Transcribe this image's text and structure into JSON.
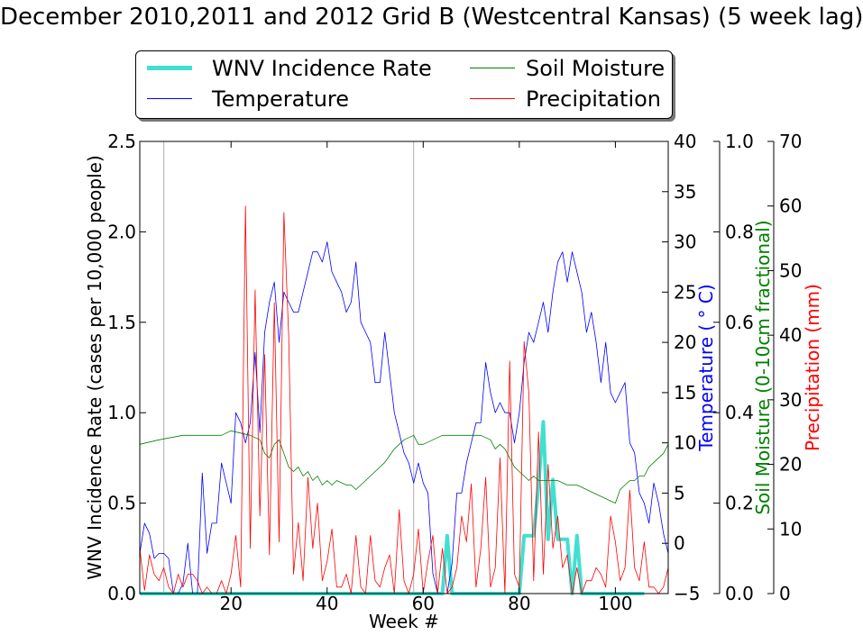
{
  "title": "December 2010,2011 and 2012 Grid B (Westcentral Kansas) (5 week lag)",
  "legend": [
    {
      "label": "WNV Incidence Rate",
      "color": "#40E0D0"
    },
    {
      "label": "Soil Moisture",
      "color": "#008000"
    },
    {
      "label": "Temperature",
      "color": "#0000FF"
    },
    {
      "label": "Precipitation",
      "color": "#FF0000"
    }
  ],
  "chart_data": {
    "type": "line",
    "xlabel": "Week #",
    "xlim": [
      1,
      111
    ],
    "xticks": [
      20,
      40,
      60,
      80,
      100
    ],
    "vlines": [
      6,
      58
    ],
    "axes": {
      "wnv": {
        "label": "WNV Incidence Rate (cases per 10,000 people)",
        "lim": [
          0,
          2.5
        ],
        "ticks": [
          "0.0",
          "0.5",
          "1.0",
          "1.5",
          "2.0",
          "2.5"
        ],
        "color": "#000000"
      },
      "temperature": {
        "label": "Temperature ( ° C)",
        "lim": [
          -5,
          40
        ],
        "ticks": [
          "−5",
          "0",
          "5",
          "10",
          "15",
          "20",
          "25",
          "30",
          "35",
          "40"
        ],
        "color": "#0000FF"
      },
      "soil": {
        "label": "Soil Moisture (0-10cm fractional)",
        "lim": [
          0,
          1.0
        ],
        "ticks": [
          "0.0",
          "0.2",
          "0.4",
          "0.6",
          "0.8",
          "1.0"
        ],
        "color": "#008000"
      },
      "precip": {
        "label": "Precipitation (mm)",
        "lim": [
          0,
          70
        ],
        "ticks": [
          "0",
          "10",
          "20",
          "30",
          "40",
          "50",
          "60",
          "70"
        ],
        "color": "#FF0000"
      }
    },
    "series": [
      {
        "name": "WNV Incidence Rate",
        "axis": "wnv",
        "color": "#40E0D0",
        "width": 4,
        "points": [
          [
            1,
            0
          ],
          [
            64,
            0
          ],
          [
            65,
            0.32
          ],
          [
            66,
            0
          ],
          [
            80,
            0
          ],
          [
            81,
            0.32
          ],
          [
            83,
            0.32
          ],
          [
            84,
            0.6
          ],
          [
            85,
            0.95
          ],
          [
            86,
            0.3
          ],
          [
            87,
            0.63
          ],
          [
            88,
            0.3
          ],
          [
            90,
            0.3
          ],
          [
            91,
            0
          ],
          [
            92,
            0.32
          ],
          [
            93,
            0
          ],
          [
            106,
            0
          ]
        ]
      },
      {
        "name": "Temperature",
        "axis": "temperature",
        "color": "#0000FF",
        "width": 0.8,
        "points": [
          [
            1,
            -1
          ],
          [
            2,
            2
          ],
          [
            3,
            1
          ],
          [
            4,
            -1.5
          ],
          [
            5,
            -1
          ],
          [
            6,
            -1
          ],
          [
            7,
            -1.5
          ],
          [
            8,
            -5
          ],
          [
            9,
            -5
          ],
          [
            10,
            -4
          ],
          [
            11,
            0
          ],
          [
            12,
            -5
          ],
          [
            13,
            -5
          ],
          [
            14,
            7
          ],
          [
            15,
            -1
          ],
          [
            16,
            2
          ],
          [
            17,
            2
          ],
          [
            18,
            8
          ],
          [
            19,
            6
          ],
          [
            20,
            4
          ],
          [
            21,
            13
          ],
          [
            22,
            12
          ],
          [
            23,
            10
          ],
          [
            24,
            12
          ],
          [
            25,
            19
          ],
          [
            26,
            11
          ],
          [
            27,
            21
          ],
          [
            28,
            24
          ],
          [
            29,
            26
          ],
          [
            30,
            20
          ],
          [
            31,
            25
          ],
          [
            32,
            24
          ],
          [
            33,
            23
          ],
          [
            34,
            23
          ],
          [
            35,
            25
          ],
          [
            36,
            27
          ],
          [
            37,
            29
          ],
          [
            38,
            29
          ],
          [
            39,
            28
          ],
          [
            40,
            30
          ],
          [
            41,
            27
          ],
          [
            42,
            26
          ],
          [
            43,
            25
          ],
          [
            44,
            23
          ],
          [
            45,
            24
          ],
          [
            46,
            28
          ],
          [
            47,
            22
          ],
          [
            48,
            21
          ],
          [
            49,
            20
          ],
          [
            50,
            16
          ],
          [
            51,
            16
          ],
          [
            52,
            21
          ],
          [
            53,
            17
          ],
          [
            54,
            13
          ],
          [
            55,
            11
          ],
          [
            56,
            9
          ],
          [
            57,
            8
          ],
          [
            58,
            6
          ],
          [
            59,
            8
          ],
          [
            60,
            6
          ],
          [
            61,
            5
          ],
          [
            62,
            -3
          ],
          [
            63,
            -5
          ],
          [
            64,
            -5
          ],
          [
            65,
            -5
          ],
          [
            66,
            -2
          ],
          [
            67,
            5
          ],
          [
            68,
            5
          ],
          [
            69,
            8
          ],
          [
            70,
            10
          ],
          [
            71,
            12
          ],
          [
            72,
            12
          ],
          [
            73,
            18
          ],
          [
            74,
            15
          ],
          [
            75,
            13
          ],
          [
            76,
            14
          ],
          [
            77,
            13
          ],
          [
            78,
            13
          ],
          [
            79,
            10
          ],
          [
            80,
            13
          ],
          [
            81,
            18
          ],
          [
            82,
            21
          ],
          [
            83,
            20
          ],
          [
            84,
            22
          ],
          [
            85,
            24
          ],
          [
            86,
            21
          ],
          [
            87,
            25
          ],
          [
            88,
            28
          ],
          [
            89,
            29
          ],
          [
            90,
            26
          ],
          [
            91,
            29
          ],
          [
            92,
            27
          ],
          [
            93,
            25
          ],
          [
            94,
            21
          ],
          [
            95,
            23
          ],
          [
            96,
            20
          ],
          [
            97,
            16
          ],
          [
            98,
            20
          ],
          [
            99,
            15
          ],
          [
            100,
            14
          ],
          [
            101,
            15
          ],
          [
            102,
            16
          ],
          [
            103,
            10
          ],
          [
            104,
            9
          ],
          [
            105,
            5
          ],
          [
            106,
            4
          ],
          [
            107,
            2
          ],
          [
            108,
            6
          ],
          [
            109,
            4
          ],
          [
            110,
            1
          ],
          [
            111,
            -1
          ]
        ]
      },
      {
        "name": "Soil Moisture",
        "axis": "soil",
        "color": "#008000",
        "width": 0.8,
        "points": [
          [
            1,
            0.33
          ],
          [
            5,
            0.34
          ],
          [
            10,
            0.35
          ],
          [
            14,
            0.35
          ],
          [
            18,
            0.35
          ],
          [
            20,
            0.36
          ],
          [
            24,
            0.35
          ],
          [
            26,
            0.34
          ],
          [
            27,
            0.31
          ],
          [
            28,
            0.3
          ],
          [
            29,
            0.33
          ],
          [
            30,
            0.34
          ],
          [
            31,
            0.31
          ],
          [
            32,
            0.28
          ],
          [
            33,
            0.27
          ],
          [
            34,
            0.28
          ],
          [
            35,
            0.26
          ],
          [
            36,
            0.27
          ],
          [
            37,
            0.25
          ],
          [
            38,
            0.26
          ],
          [
            39,
            0.24
          ],
          [
            40,
            0.25
          ],
          [
            41,
            0.24
          ],
          [
            42,
            0.25
          ],
          [
            44,
            0.24
          ],
          [
            45,
            0.24
          ],
          [
            46,
            0.23
          ],
          [
            48,
            0.25
          ],
          [
            50,
            0.27
          ],
          [
            52,
            0.29
          ],
          [
            54,
            0.32
          ],
          [
            56,
            0.34
          ],
          [
            58,
            0.35
          ],
          [
            59,
            0.33
          ],
          [
            60,
            0.33
          ],
          [
            62,
            0.34
          ],
          [
            64,
            0.35
          ],
          [
            66,
            0.35
          ],
          [
            68,
            0.35
          ],
          [
            70,
            0.35
          ],
          [
            72,
            0.35
          ],
          [
            74,
            0.34
          ],
          [
            75,
            0.32
          ],
          [
            76,
            0.33
          ],
          [
            77,
            0.32
          ],
          [
            78,
            0.3
          ],
          [
            79,
            0.28
          ],
          [
            80,
            0.27
          ],
          [
            81,
            0.26
          ],
          [
            82,
            0.25
          ],
          [
            83,
            0.26
          ],
          [
            84,
            0.25
          ],
          [
            86,
            0.25
          ],
          [
            88,
            0.25
          ],
          [
            90,
            0.24
          ],
          [
            92,
            0.24
          ],
          [
            94,
            0.23
          ],
          [
            96,
            0.22
          ],
          [
            98,
            0.21
          ],
          [
            100,
            0.2
          ],
          [
            101,
            0.23
          ],
          [
            102,
            0.24
          ],
          [
            103,
            0.25
          ],
          [
            104,
            0.25
          ],
          [
            105,
            0.26
          ],
          [
            106,
            0.26
          ],
          [
            107,
            0.28
          ],
          [
            108,
            0.29
          ],
          [
            109,
            0.3
          ],
          [
            110,
            0.31
          ],
          [
            111,
            0.33
          ]
        ]
      },
      {
        "name": "Precipitation",
        "axis": "precip",
        "color": "#FF0000",
        "width": 0.8,
        "points": [
          [
            1,
            7
          ],
          [
            2,
            0.5
          ],
          [
            3,
            6
          ],
          [
            4,
            3
          ],
          [
            5,
            2
          ],
          [
            6,
            4
          ],
          [
            7,
            1
          ],
          [
            8,
            0
          ],
          [
            9,
            3
          ],
          [
            10,
            1
          ],
          [
            11,
            3
          ],
          [
            12,
            3
          ],
          [
            13,
            2
          ],
          [
            14,
            0
          ],
          [
            15,
            1
          ],
          [
            16,
            0
          ],
          [
            17,
            0
          ],
          [
            18,
            2
          ],
          [
            19,
            0
          ],
          [
            20,
            3
          ],
          [
            21,
            9
          ],
          [
            22,
            1
          ],
          [
            23,
            60
          ],
          [
            24,
            7
          ],
          [
            25,
            47
          ],
          [
            26,
            12
          ],
          [
            27,
            37
          ],
          [
            28,
            6
          ],
          [
            29,
            45
          ],
          [
            30,
            8
          ],
          [
            31,
            59
          ],
          [
            32,
            40
          ],
          [
            33,
            3
          ],
          [
            34,
            11
          ],
          [
            35,
            2
          ],
          [
            36,
            18
          ],
          [
            37,
            7
          ],
          [
            38,
            14
          ],
          [
            39,
            2
          ],
          [
            40,
            5
          ],
          [
            41,
            10
          ],
          [
            42,
            1
          ],
          [
            43,
            1
          ],
          [
            44,
            3
          ],
          [
            45,
            0
          ],
          [
            46,
            9
          ],
          [
            47,
            1
          ],
          [
            48,
            0
          ],
          [
            49,
            9
          ],
          [
            50,
            2
          ],
          [
            51,
            1
          ],
          [
            52,
            4
          ],
          [
            53,
            6
          ],
          [
            54,
            0
          ],
          [
            55,
            13
          ],
          [
            56,
            2
          ],
          [
            57,
            0
          ],
          [
            58,
            3
          ],
          [
            59,
            10
          ],
          [
            60,
            0
          ],
          [
            61,
            5
          ],
          [
            62,
            9
          ],
          [
            63,
            0
          ],
          [
            64,
            7
          ],
          [
            65,
            0
          ],
          [
            66,
            1
          ],
          [
            67,
            4
          ],
          [
            68,
            12
          ],
          [
            69,
            8
          ],
          [
            70,
            17
          ],
          [
            71,
            1
          ],
          [
            72,
            7
          ],
          [
            73,
            18
          ],
          [
            74,
            1
          ],
          [
            75,
            4
          ],
          [
            76,
            21
          ],
          [
            77,
            0
          ],
          [
            78,
            36
          ],
          [
            79,
            3
          ],
          [
            80,
            1
          ],
          [
            81,
            39
          ],
          [
            82,
            31
          ],
          [
            83,
            2
          ],
          [
            84,
            25
          ],
          [
            85,
            3
          ],
          [
            86,
            20
          ],
          [
            87,
            7
          ],
          [
            88,
            12
          ],
          [
            89,
            4
          ],
          [
            90,
            6
          ],
          [
            91,
            0
          ],
          [
            92,
            4
          ],
          [
            93,
            0
          ],
          [
            94,
            2
          ],
          [
            95,
            2
          ],
          [
            96,
            4
          ],
          [
            97,
            3
          ],
          [
            98,
            1
          ],
          [
            99,
            12
          ],
          [
            100,
            8
          ],
          [
            101,
            2
          ],
          [
            102,
            4
          ],
          [
            103,
            16
          ],
          [
            104,
            4
          ],
          [
            105,
            2
          ],
          [
            106,
            8
          ],
          [
            107,
            1
          ],
          [
            108,
            1
          ],
          [
            109,
            0
          ],
          [
            110,
            1
          ],
          [
            111,
            4
          ]
        ]
      }
    ]
  }
}
